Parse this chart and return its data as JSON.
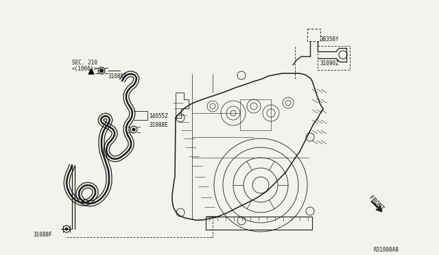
{
  "bg_color": "#f2f2ee",
  "line_color": "#1a1a1a",
  "dashed_color": "#333333",
  "text_color": "#111111",
  "font_size": 5.5,
  "diagram_id": "R31000A8",
  "labels": {
    "sec210": "SEC. 210",
    "c1060": "<(1060)>",
    "p31088F_t": "31088F",
    "p14055Z": "14055Z",
    "p31088E": "31088E",
    "p31088F_b": "31088F",
    "p38356Y": "38356Y",
    "p31090Z": "31090Z",
    "front": "FRONT"
  }
}
